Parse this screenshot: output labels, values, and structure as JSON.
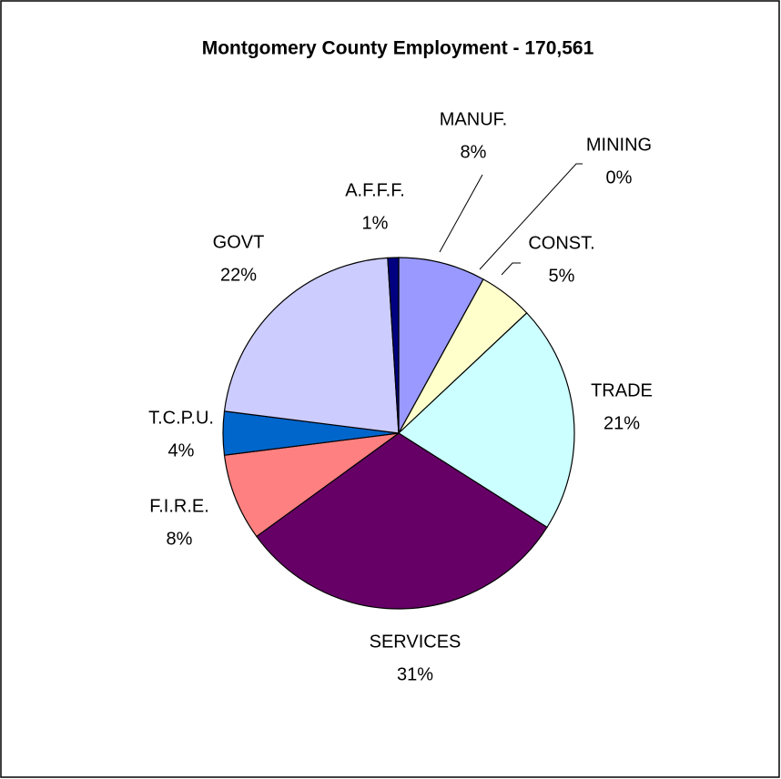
{
  "chart_data": {
    "type": "pie",
    "title": "Montgomery County Employment - 170,561",
    "categories": [
      "MANUF.",
      "MINING",
      "CONST.",
      "TRADE",
      "SERVICES",
      "F.I.R.E.",
      "T.C.P.U.",
      "GOVT",
      "A.F.F.F."
    ],
    "values": [
      8,
      0,
      5,
      21,
      31,
      8,
      4,
      22,
      1
    ],
    "value_labels": [
      "8%",
      "0%",
      "5%",
      "21%",
      "31%",
      "8%",
      "4%",
      "22%",
      "1%"
    ],
    "colors": [
      "#9999FF",
      "#663366",
      "#FFFFCC",
      "#CCFFFF",
      "#660066",
      "#FF8080",
      "#0066CC",
      "#CCCCFF",
      "#000080"
    ]
  }
}
